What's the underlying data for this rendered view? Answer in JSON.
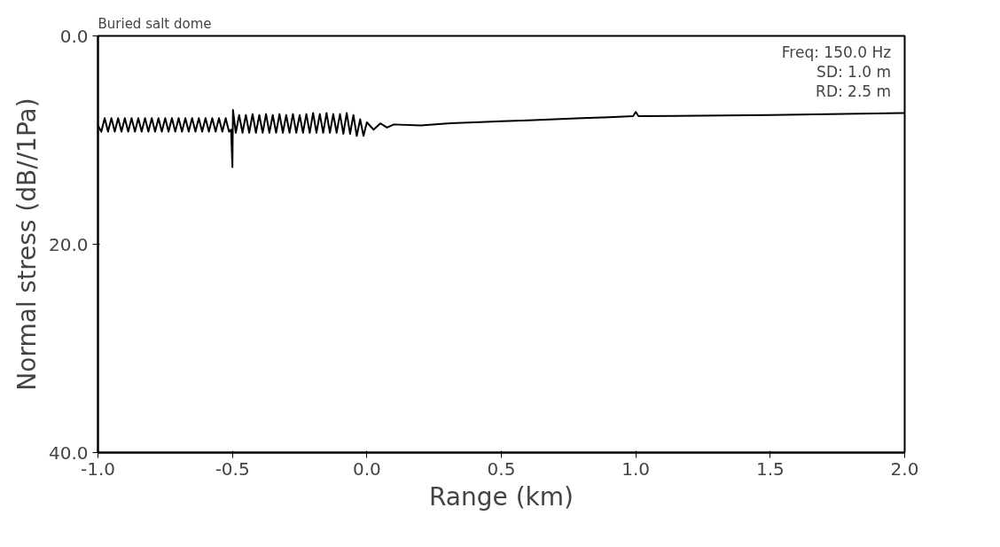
{
  "chart_data": {
    "type": "line",
    "title": "Buried salt dome",
    "xlabel": "Range (km)",
    "ylabel": "Normal stress (dB//1Pa)",
    "annotations": [
      "Freq:  150.0 Hz",
      "SD:  1.0 m",
      "RD:  2.5 m"
    ],
    "x": [
      -1.0,
      -0.9875,
      -0.975,
      -0.9625,
      -0.95,
      -0.9375,
      -0.925,
      -0.9125,
      -0.9,
      -0.8875,
      -0.875,
      -0.8625,
      -0.85,
      -0.8375,
      -0.825,
      -0.8125,
      -0.8,
      -0.7875,
      -0.775,
      -0.7625,
      -0.75,
      -0.7375,
      -0.725,
      -0.7125,
      -0.7,
      -0.6875,
      -0.675,
      -0.6625,
      -0.65,
      -0.6375,
      -0.625,
      -0.6125,
      -0.6,
      -0.5875,
      -0.575,
      -0.5625,
      -0.55,
      -0.5375,
      -0.525,
      -0.5125,
      -0.505,
      -0.5,
      -0.498,
      -0.4875,
      -0.475,
      -0.4625,
      -0.45,
      -0.4375,
      -0.425,
      -0.4125,
      -0.4,
      -0.3875,
      -0.375,
      -0.3625,
      -0.35,
      -0.3375,
      -0.325,
      -0.3125,
      -0.3,
      -0.2875,
      -0.275,
      -0.2625,
      -0.25,
      -0.2375,
      -0.225,
      -0.2125,
      -0.2,
      -0.1875,
      -0.175,
      -0.1625,
      -0.15,
      -0.1375,
      -0.125,
      -0.1125,
      -0.1,
      -0.0875,
      -0.075,
      -0.0625,
      -0.05,
      -0.0375,
      -0.025,
      -0.0125,
      0.0,
      0.025,
      0.05,
      0.075,
      0.1,
      0.2,
      0.3,
      0.4,
      0.5,
      0.6,
      0.7,
      0.8,
      0.9,
      0.99,
      1.0,
      1.01,
      1.5,
      2.0
    ],
    "values": [
      8.6,
      9.2,
      7.9,
      9.2,
      7.9,
      9.2,
      7.9,
      9.2,
      7.9,
      9.2,
      7.9,
      9.2,
      7.9,
      9.2,
      7.9,
      9.2,
      7.9,
      9.2,
      7.9,
      9.2,
      7.9,
      9.2,
      7.9,
      9.2,
      7.9,
      9.2,
      7.9,
      9.2,
      7.9,
      9.2,
      7.9,
      9.2,
      7.9,
      9.2,
      7.9,
      9.2,
      7.9,
      9.2,
      7.9,
      9.2,
      9.0,
      12.6,
      7.1,
      9.3,
      7.6,
      9.3,
      7.6,
      9.3,
      7.5,
      9.3,
      7.6,
      9.3,
      7.5,
      9.3,
      7.6,
      9.3,
      7.5,
      9.3,
      7.6,
      9.3,
      7.5,
      9.3,
      7.6,
      9.3,
      7.5,
      9.3,
      7.4,
      9.3,
      7.5,
      9.3,
      7.4,
      9.3,
      7.5,
      9.3,
      7.5,
      9.4,
      7.4,
      9.4,
      7.6,
      9.6,
      8.0,
      9.6,
      8.3,
      9.0,
      8.4,
      8.8,
      8.5,
      8.6,
      8.4,
      8.3,
      8.2,
      8.1,
      8.0,
      7.9,
      7.8,
      7.7,
      7.3,
      7.7,
      7.6,
      7.4
    ],
    "color": "#000000",
    "xlim": [
      -1.0,
      2.0
    ],
    "ylim": [
      40.0,
      0.0
    ],
    "xticks": [
      {
        "value": -1.0,
        "label": "-1.0"
      },
      {
        "value": -0.5,
        "label": "-0.5"
      },
      {
        "value": 0.0,
        "label": "0.0"
      },
      {
        "value": 0.5,
        "label": "0.5"
      },
      {
        "value": 1.0,
        "label": "1.0"
      },
      {
        "value": 1.5,
        "label": "1.5"
      },
      {
        "value": 2.0,
        "label": "2.0"
      }
    ],
    "yticks": [
      {
        "value": 0.0,
        "label": "0.0"
      },
      {
        "value": 20.0,
        "label": "20.0"
      },
      {
        "value": 40.0,
        "label": "40.0"
      }
    ],
    "grid": false,
    "marker": "none",
    "line_style": "solid"
  }
}
